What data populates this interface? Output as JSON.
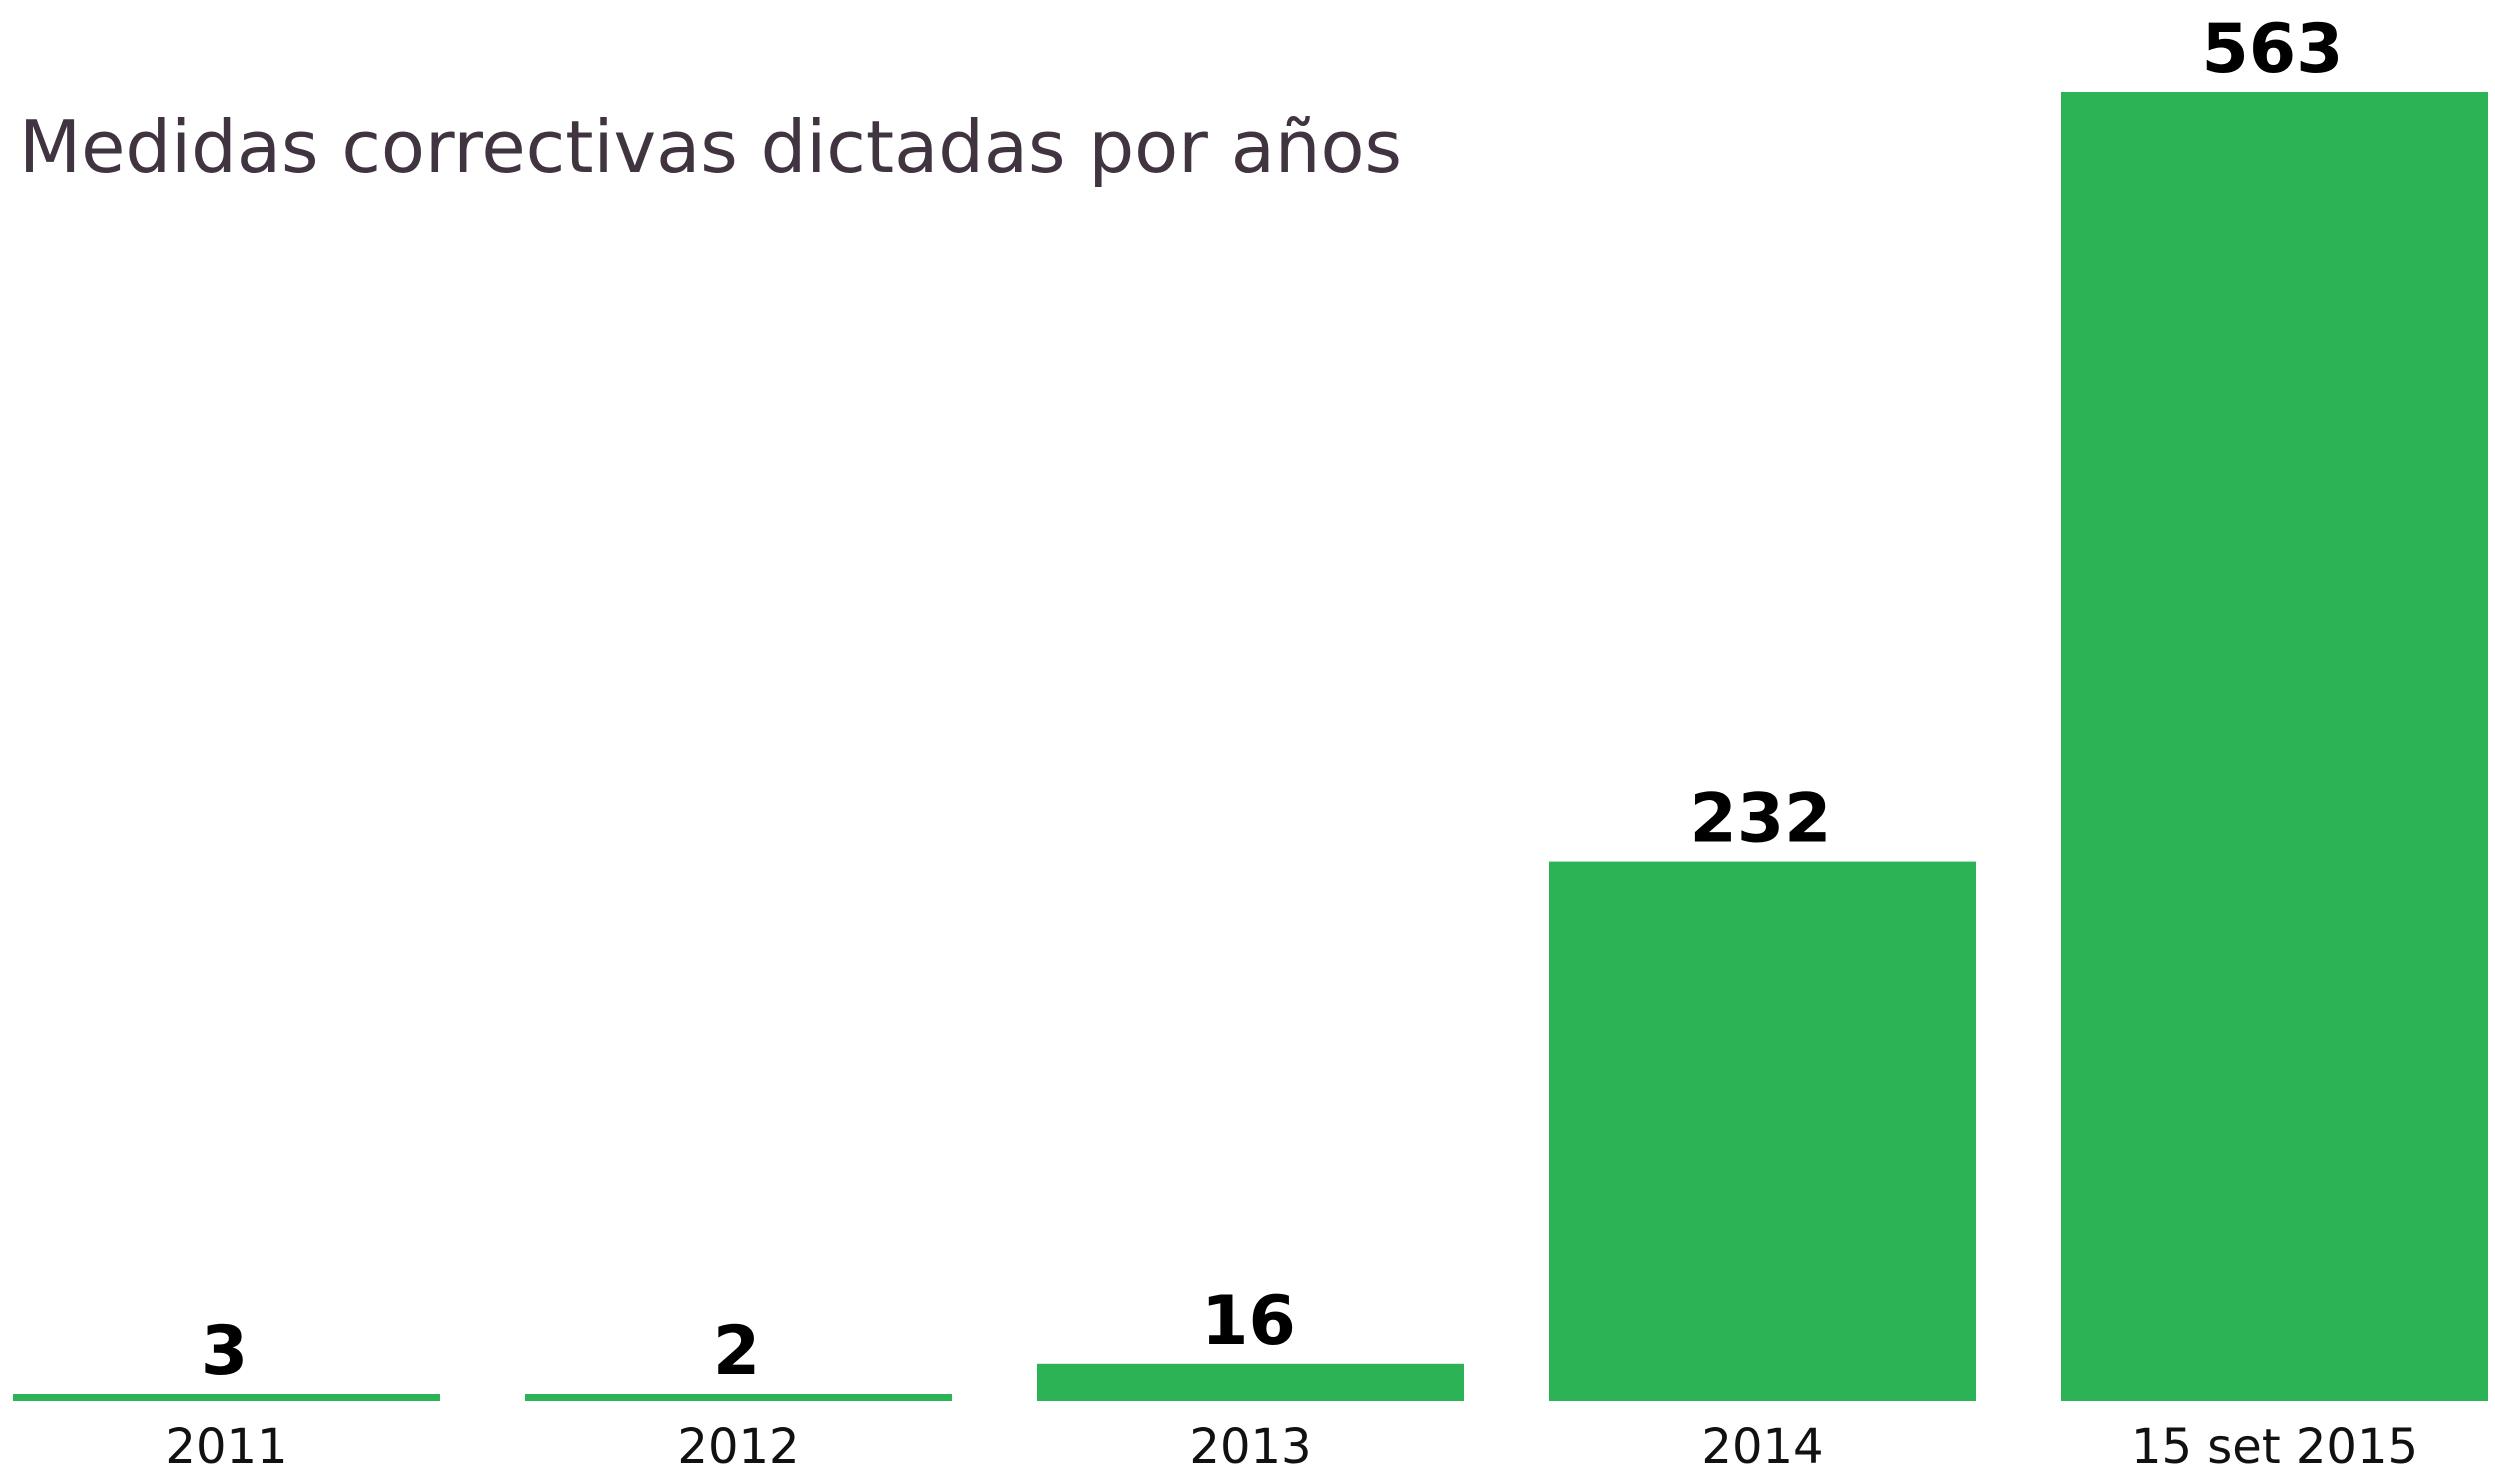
{
  "chart_data": {
    "type": "bar",
    "title": "Medidas correctivas dictadas por años",
    "categories": [
      "2011",
      "2012",
      "2013",
      "2014",
      "15 set 2015"
    ],
    "values": [
      3,
      2,
      16,
      232,
      563
    ],
    "color": "#2bb355"
  }
}
